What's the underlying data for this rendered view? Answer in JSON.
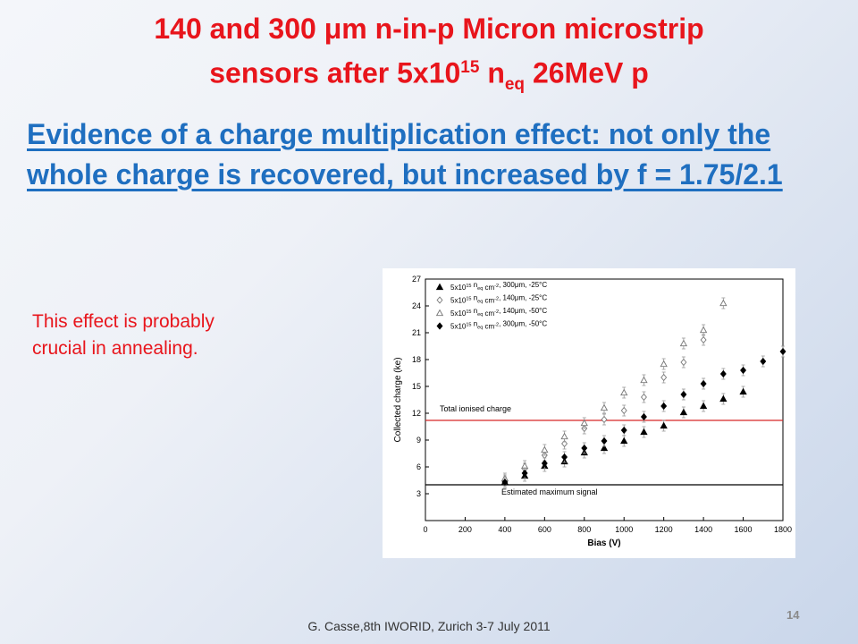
{
  "slide": {
    "title_line1_a": "140 and 300 ",
    "title_mu": "μ",
    "title_line1_b": "m n-in-p Micron microstrip",
    "title_line2_a": "sensors after 5x10",
    "title_sup": "15",
    "title_line2_b": " n",
    "title_sub": "eq",
    "title_line2_c": " 26MeV p",
    "subtitle": "Evidence of a charge multiplication effect: not only the whole charge is recovered, but increased by f = 1.75/2.1",
    "note": "This effect is probably crucial in annealing.",
    "footer": "G. Casse,8th IWORID, Zurich 3-7 July 2011",
    "page_number": "14"
  },
  "chart_data": {
    "type": "scatter",
    "xlabel": "Bias (V)",
    "ylabel": "Collected charge (ke)",
    "xlim": [
      0,
      1800
    ],
    "ylim": [
      0,
      27
    ],
    "xticks": [
      0,
      200,
      400,
      600,
      800,
      1000,
      1200,
      1400,
      1600,
      1800
    ],
    "yticks": [
      3,
      6,
      9,
      12,
      15,
      18,
      21,
      24,
      27
    ],
    "legend_position": "top-left",
    "series": [
      {
        "name": "5x10^15 neq cm^-2, 300μm, -25°C",
        "legend_text": "5x10",
        "legend_sup": "15",
        "legend_rest": " n",
        "legend_sub": "eq",
        "legend_tail": " cm",
        "legend_sup2": "-2",
        "legend_end": ", 300μm, -25°C",
        "marker": "triangle-filled",
        "x": [
          400,
          500,
          600,
          700,
          800,
          900,
          1000,
          1100,
          1200,
          1300,
          1400,
          1500,
          1600
        ],
        "y": [
          4.3,
          5.0,
          6.1,
          6.6,
          7.6,
          8.1,
          8.9,
          9.9,
          10.6,
          12.1,
          12.8,
          13.6,
          14.4
        ]
      },
      {
        "name": "5x10^15 neq cm^-2, 140μm, -25°C",
        "legend_text": "5x10",
        "legend_sup": "15",
        "legend_rest": " n",
        "legend_sub": "eq",
        "legend_tail": " cm",
        "legend_sup2": "-2",
        "legend_end": ", 140μm, -25°C",
        "marker": "diamond-open",
        "x": [
          400,
          500,
          600,
          700,
          800,
          900,
          1000,
          1100,
          1200,
          1300,
          1400
        ],
        "y": [
          4.5,
          5.8,
          7.3,
          8.6,
          10.3,
          11.3,
          12.3,
          13.8,
          16.0,
          17.7,
          20.2
        ]
      },
      {
        "name": "5x10^15 neq cm^-2, 140μm, -50°C",
        "legend_text": "5x10",
        "legend_sup": "15",
        "legend_rest": " n",
        "legend_sub": "eq",
        "legend_tail": " cm",
        "legend_sup2": "-2",
        "legend_end": ", 140μm, -50°C",
        "marker": "triangle-open",
        "x": [
          400,
          500,
          600,
          700,
          800,
          900,
          1000,
          1100,
          1200,
          1300,
          1400,
          1500
        ],
        "y": [
          4.7,
          6.1,
          7.9,
          9.4,
          10.9,
          12.6,
          14.3,
          15.7,
          17.5,
          19.8,
          21.3,
          24.3
        ]
      },
      {
        "name": "5x10^15 neq cm^-2, 300μm, -50°C",
        "legend_text": "5x10",
        "legend_sup": "15",
        "legend_rest": " n",
        "legend_sub": "eq",
        "legend_tail": " cm",
        "legend_sup2": "-2",
        "legend_end": ", 300μm, -50°C",
        "marker": "diamond-filled",
        "x": [
          400,
          500,
          600,
          700,
          800,
          900,
          1000,
          1100,
          1200,
          1300,
          1400,
          1500,
          1600,
          1700,
          1800
        ],
        "y": [
          4.3,
          5.3,
          6.4,
          7.1,
          8.1,
          8.9,
          10.1,
          11.6,
          12.8,
          14.1,
          15.3,
          16.4,
          16.8,
          17.8,
          18.9
        ]
      }
    ],
    "reference_lines": [
      {
        "label": "Total ionised charge",
        "y": 11.2,
        "color": "#d62728"
      },
      {
        "label": "Estimated maximum signal",
        "y": 4.0,
        "color": "#000000"
      }
    ]
  }
}
